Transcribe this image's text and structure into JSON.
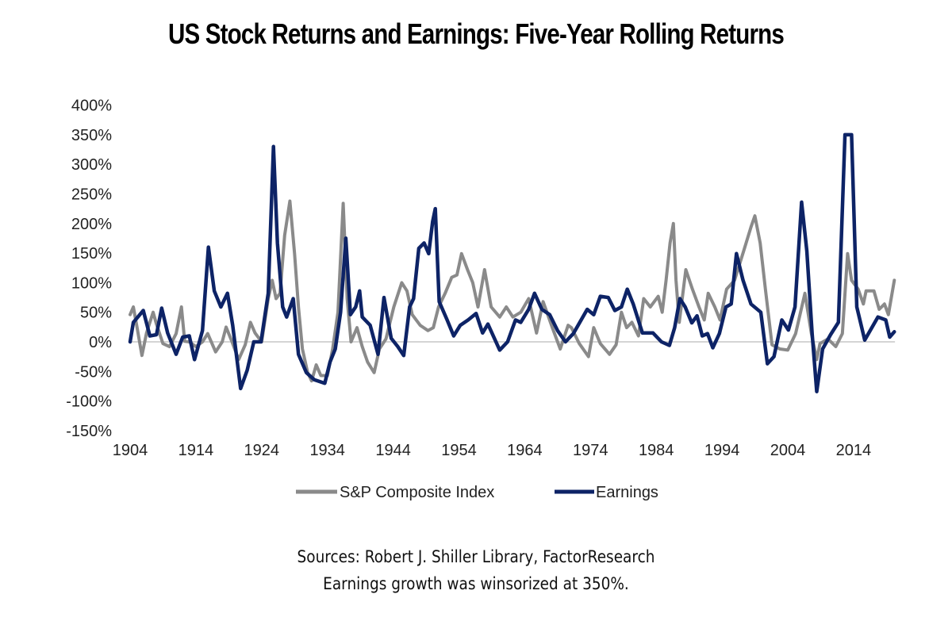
{
  "chart_data": {
    "type": "line",
    "title": "US Stock Returns and Earnings: Five-Year Rolling Returns",
    "xlabel": "",
    "ylabel": "",
    "xlim": [
      1904,
      2020.3
    ],
    "ylim": [
      -150,
      400
    ],
    "x_ticks": [
      "1904",
      "1914",
      "1924",
      "1934",
      "1944",
      "1954",
      "1964",
      "1974",
      "1984",
      "1994",
      "2004",
      "2014"
    ],
    "y_ticks": [
      "400%",
      "350%",
      "300%",
      "250%",
      "200%",
      "150%",
      "100%",
      "50%",
      "0%",
      "-50%",
      "-100%",
      "-150%"
    ],
    "grid": false,
    "zero_line": true,
    "legend": "bottom",
    "series": [
      {
        "name": "S&P Composite Index",
        "color": "#8a8a8a",
        "x": [
          1904,
          1904.5,
          1905,
          1905.8,
          1906.5,
          1907.5,
          1908,
          1909,
          1910,
          1911,
          1911.8,
          1912.3,
          1913,
          1914,
          1915,
          1915.8,
          1917,
          1918,
          1918.6,
          1919.5,
          1920.5,
          1921.5,
          1922.3,
          1923,
          1924,
          1925,
          1925.6,
          1926.2,
          1926.8,
          1927.5,
          1928.3,
          1929,
          1929.6,
          1930.2,
          1931,
          1931.6,
          1932.3,
          1933,
          1934,
          1934.8,
          1935.6,
          1936.4,
          1937,
          1937.6,
          1938.5,
          1939.3,
          1940.1,
          1941.1,
          1941.9,
          1942.9,
          1944.1,
          1945.3,
          1946.1,
          1946.9,
          1948.1,
          1949.3,
          1950.1,
          1950.9,
          1951.9,
          1952.9,
          1953.7,
          1954.4,
          1955.3,
          1956.1,
          1956.9,
          1957.9,
          1958.9,
          1960.2,
          1961.2,
          1962.2,
          1963.4,
          1964.6,
          1965.8,
          1966.8,
          1968.2,
          1969.4,
          1970.6,
          1971.1,
          1972.3,
          1973.7,
          1974.5,
          1975.5,
          1976.9,
          1977.9,
          1978.7,
          1979.5,
          1980.3,
          1981.3,
          1982.1,
          1983.1,
          1984.3,
          1984.9,
          1985.5,
          1986.1,
          1986.6,
          1987,
          1987.5,
          1988.5,
          1989.5,
          1990.5,
          1991.3,
          1991.9,
          1992.9,
          1993.7,
          1994.7,
          1995.9,
          1997.3,
          1998.4,
          1999,
          1999.8,
          2000.6,
          2001.6,
          2002.8,
          2004,
          2005.2,
          2006.6,
          2007.6,
          2008.4,
          2008.9,
          2010.1,
          2011.3,
          2012.3,
          2013.1,
          2013.7,
          2014.7,
          2015.5,
          2015.9,
          2017.1,
          2017.9,
          2018.7,
          2019.3,
          2020.2
        ],
        "y": [
          46,
          59,
          28,
          -23,
          15,
          50,
          30,
          -3,
          -8,
          14,
          59,
          1,
          0,
          -8,
          0,
          14,
          -17,
          0,
          25,
          0,
          -30,
          -5,
          33,
          15,
          0,
          73,
          104,
          73,
          82,
          180,
          238,
          149,
          59,
          -12,
          -52,
          -66,
          -39,
          -57,
          -57,
          -12,
          50,
          234,
          73,
          0,
          24,
          -8,
          -34,
          -52,
          -12,
          5,
          59,
          100,
          86,
          46,
          28,
          19,
          24,
          59,
          82,
          109,
          113,
          149,
          122,
          100,
          59,
          122,
          59,
          42,
          59,
          42,
          50,
          73,
          15,
          68,
          24,
          -12,
          28,
          24,
          -3,
          -25,
          24,
          -3,
          -21,
          -5,
          50,
          24,
          33,
          10,
          73,
          59,
          77,
          50,
          104,
          167,
          200,
          104,
          33,
          122,
          89,
          59,
          37,
          82,
          59,
          37,
          89,
          104,
          154,
          194,
          213,
          167,
          89,
          -5,
          -12,
          -14,
          14,
          82,
          14,
          -30,
          -3,
          5,
          -8,
          14,
          149,
          104,
          89,
          64,
          86,
          86,
          55,
          64,
          46,
          104
        ]
      },
      {
        "name": "Earnings",
        "color": "#0d2366",
        "x": [
          1904,
          1904.5,
          1906,
          1907,
          1908,
          1908.8,
          1909.7,
          1911,
          1912,
          1913,
          1913.8,
          1915,
          1915.9,
          1916.8,
          1917.8,
          1918.8,
          1919.6,
          1920.8,
          1921.8,
          1922.8,
          1923.9,
          1925,
          1925.8,
          1926.4,
          1927.2,
          1927.8,
          1928.8,
          1929.6,
          1930.8,
          1932,
          1933.6,
          1934.4,
          1935.2,
          1936,
          1936.8,
          1937.5,
          1938.3,
          1938.9,
          1939.3,
          1940.5,
          1941.7,
          1942.6,
          1943.7,
          1944.7,
          1945.6,
          1946.5,
          1947.1,
          1947.9,
          1948.7,
          1949.4,
          1950,
          1950.4,
          1951,
          1952.2,
          1953.2,
          1954.2,
          1955.4,
          1956.6,
          1957.6,
          1958.4,
          1960.2,
          1961.4,
          1962.6,
          1963.4,
          1964.6,
          1965.5,
          1966.6,
          1967.8,
          1969,
          1970.2,
          1971.4,
          1973.5,
          1974.5,
          1975.5,
          1976.7,
          1977.7,
          1978.7,
          1979.6,
          1980.5,
          1981.9,
          1983.5,
          1984.8,
          1986,
          1986.8,
          1987.6,
          1988.4,
          1989.4,
          1990.2,
          1991,
          1991.8,
          1992.6,
          1993.6,
          1994.6,
          1995.4,
          1996.2,
          1997.2,
          1998.4,
          1999.9,
          2000.9,
          2001.9,
          2003.1,
          2004.1,
          2005.1,
          2006.1,
          2006.9,
          2007.7,
          2008.4,
          2009.3,
          2010.5,
          2011.7,
          2012.7,
          2013.7,
          2014.5,
          2015.7,
          2017.7,
          2018.9,
          2019.5,
          2020.2
        ],
        "y": [
          0,
          33,
          53,
          10,
          12,
          57,
          15,
          -21,
          8,
          10,
          -30,
          19,
          160,
          86,
          59,
          82,
          28,
          -79,
          -48,
          0,
          0,
          82,
          330,
          167,
          59,
          42,
          73,
          -21,
          -52,
          -64,
          -70,
          -34,
          -12,
          50,
          175,
          46,
          59,
          86,
          42,
          28,
          -21,
          75,
          6,
          -8,
          -23,
          59,
          73,
          158,
          167,
          149,
          203,
          225,
          68,
          37,
          10,
          28,
          37,
          48,
          15,
          30,
          -14,
          0,
          37,
          33,
          55,
          82,
          55,
          46,
          19,
          0,
          14,
          55,
          46,
          77,
          75,
          53,
          59,
          89,
          64,
          15,
          15,
          0,
          -6,
          24,
          73,
          59,
          32,
          44,
          10,
          14,
          -10,
          14,
          59,
          64,
          149,
          104,
          64,
          50,
          -37,
          -25,
          37,
          20,
          59,
          236,
          154,
          14,
          -84,
          -12,
          12,
          33,
          350,
          350,
          59,
          3,
          42,
          37,
          8,
          17
        ]
      }
    ]
  },
  "footer": {
    "sources": "Sources: Robert J. Shiller Library, FactorResearch",
    "note": "Earnings growth was winsorized at 350%."
  }
}
